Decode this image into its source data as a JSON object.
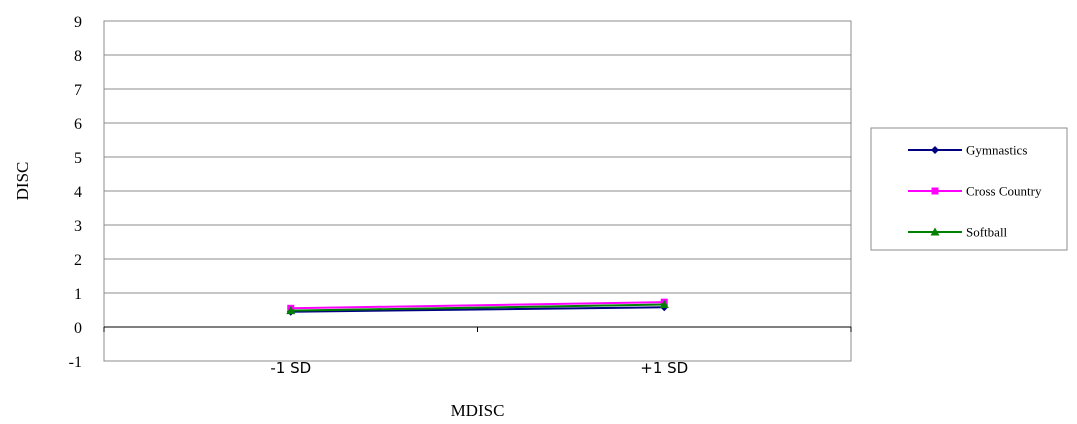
{
  "chart_data": {
    "type": "line",
    "title": "",
    "xlabel": "MDISC",
    "ylabel": "DISC",
    "categories": [
      "-1 SD",
      "+1 SD"
    ],
    "y_ticks": [
      "9",
      "8",
      "7",
      "6",
      "5",
      "4",
      "3",
      "2",
      "1",
      "0",
      "-1"
    ],
    "ylim": [
      -1,
      9
    ],
    "grid": "horizontal",
    "legend_position": "right",
    "series": [
      {
        "name": "Gymnastics",
        "values": [
          0.45,
          0.58
        ],
        "color": "#000080",
        "marker": "diamond"
      },
      {
        "name": "Cross Country",
        "values": [
          0.55,
          0.73
        ],
        "color": "#FF00FF",
        "marker": "square"
      },
      {
        "name": "Softball",
        "values": [
          0.48,
          0.66
        ],
        "color": "#008000",
        "marker": "triangle"
      }
    ]
  }
}
